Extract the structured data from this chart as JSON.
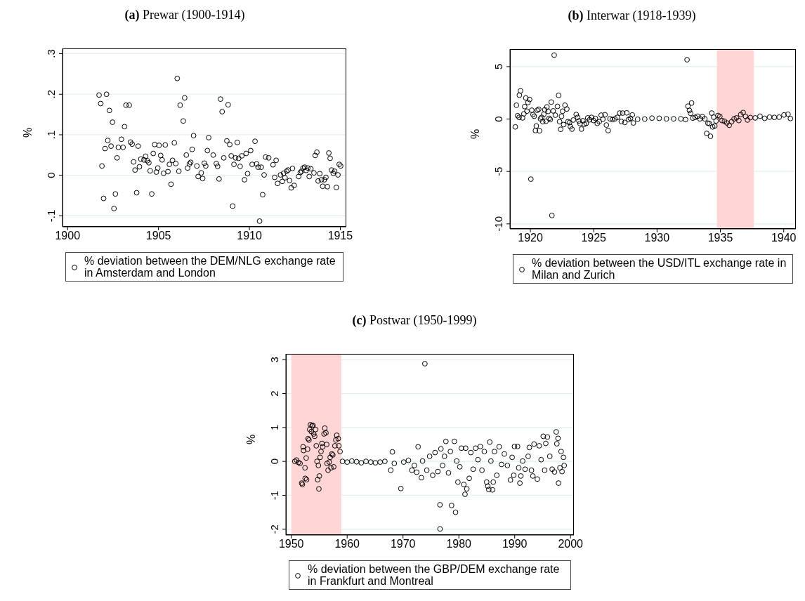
{
  "chart_data": [
    {
      "type": "scatter",
      "title": "(a) Prewar (1900-1914)",
      "ylabel": "%",
      "legend": "bottom",
      "marker": "circle",
      "grid": "y",
      "xlim": [
        1899.72,
        1915.33
      ],
      "ylim": [
        -0.127,
        0.313
      ],
      "xticks": [
        1900,
        1905,
        1910,
        1915
      ],
      "yticks": [
        {
          "value": -0.1,
          "label": "-.1"
        },
        0,
        {
          "value": 0.1,
          "label": ".1"
        },
        {
          "value": 0.2,
          "label": ".2"
        },
        {
          "value": 0.3,
          "label": ".3"
        }
      ],
      "x": [
        1901.73,
        1901.82,
        1901.89,
        1901.98,
        1902.06,
        1902.14,
        1902.21,
        1902.3,
        1902.39,
        1902.47,
        1902.55,
        1902.63,
        1902.72,
        1902.79,
        1902.96,
        1903.05,
        1903.13,
        1903.21,
        1903.39,
        1903.46,
        1903.55,
        1903.63,
        1903.71,
        1903.8,
        1903.88,
        1903.95,
        1904.03,
        1904.2,
        1904.29,
        1904.38,
        1904.47,
        1904.54,
        1904.63,
        1904.71,
        1904.79,
        1904.88,
        1904.96,
        1905.03,
        1905.12,
        1905.2,
        1905.28,
        1905.37,
        1905.52,
        1905.6,
        1905.69,
        1905.77,
        1905.87,
        1905.95,
        1906.03,
        1906.12,
        1906.19,
        1906.36,
        1906.44,
        1906.53,
        1906.6,
        1906.7,
        1906.77,
        1906.85,
        1906.93,
        1907.11,
        1907.18,
        1907.35,
        1907.43,
        1907.52,
        1907.6,
        1907.69,
        1907.76,
        1908.01,
        1908.18,
        1908.25,
        1908.33,
        1908.41,
        1908.5,
        1908.59,
        1908.76,
        1908.83,
        1908.92,
        1909.0,
        1909.08,
        1909.15,
        1909.24,
        1909.33,
        1909.41,
        1909.49,
        1909.58,
        1909.73,
        1909.82,
        1909.9,
        1910.07,
        1910.15,
        1910.31,
        1910.4,
        1910.48,
        1910.56,
        1910.65,
        1910.73,
        1910.81,
        1910.89,
        1911.06,
        1911.3,
        1911.39,
        1911.47,
        1911.55,
        1911.71,
        1911.81,
        1911.88,
        1911.96,
        1912.05,
        1912.13,
        1912.21,
        1912.3,
        1912.37,
        1912.46,
        1912.71,
        1912.8,
        1912.87,
        1912.95,
        1913.04,
        1913.12,
        1913.21,
        1913.29,
        1913.38,
        1913.55,
        1913.62,
        1913.71,
        1913.78,
        1913.87,
        1913.96,
        1914.03,
        1914.12,
        1914.21,
        1914.29,
        1914.37,
        1914.44,
        1914.52,
        1914.61,
        1914.69,
        1914.78,
        1914.87,
        1914.94,
        1915.02
      ],
      "series": [
        {
          "name": "% deviation between the DEM/NLG exchange rate in Amsterdam and London",
          "color": "#000000",
          "values": [
            0.198,
            0.177,
            0.023,
            -0.057,
            0.066,
            0.2,
            0.086,
            0.16,
            0.072,
            0.131,
            -0.082,
            -0.046,
            0.043,
            0.069,
            0.089,
            0.069,
            0.12,
            0.173,
            0.173,
            0.082,
            0.077,
            0.033,
            0.013,
            -0.043,
            0.072,
            0.021,
            0.04,
            0.038,
            0.047,
            0.036,
            0.031,
            0.011,
            -0.046,
            0.054,
            0.076,
            0.008,
            0.018,
            0.074,
            0.049,
            0.038,
            0.005,
            0.075,
            0.009,
            0.027,
            -0.022,
            0.037,
            0.08,
            0.029,
            0.239,
            0.01,
            0.173,
            0.134,
            0.191,
            0.05,
            0.018,
            0.028,
            0.032,
            0.064,
            0.098,
            0.023,
            -0.003,
            0.006,
            -0.008,
            0.03,
            0.023,
            0.061,
            0.093,
            0.05,
            0.029,
            0.022,
            -0.009,
            0.188,
            0.157,
            0.043,
            0.085,
            0.174,
            0.076,
            0.048,
            -0.076,
            0.027,
            0.043,
            0.081,
            0.042,
            0.022,
            0.048,
            -0.011,
            0.054,
            0.004,
            0.061,
            0.027,
            0.084,
            0.028,
            0.02,
            -0.113,
            0.02,
            -0.048,
            0.001,
            0.045,
            0.043,
            0.026,
            -0.005,
            0.037,
            -0.02,
            0.001,
            -0.015,
            0.005,
            -0.006,
            0.01,
            0.013,
            -0.013,
            -0.031,
            0.017,
            -0.025,
            -0.003,
            0.007,
            0.01,
            0.018,
            0.02,
            0.012,
            0.018,
            -0.003,
            0.016,
            0.006,
            0.049,
            0.057,
            -0.014,
            0.004,
            -0.011,
            -0.027,
            -0.011,
            -0.005,
            -0.028,
            0.055,
            0.042,
            0.013,
            0.005,
            0.01,
            -0.03,
            0.001,
            0.027,
            0.023
          ]
        }
      ]
    },
    {
      "type": "scatter",
      "title": "(b) Interwar (1918-1939)",
      "ylabel": "%",
      "legend": "bottom",
      "marker": "circle",
      "grid": "y",
      "xlim": [
        1918.39,
        1940.96
      ],
      "ylim": [
        -10.48,
        6.67
      ],
      "xticks": [
        1920,
        1925,
        1930,
        1935,
        1940
      ],
      "yticks": [
        -10,
        -5,
        0,
        5
      ],
      "bands": [
        {
          "axis": "x",
          "from": 1934.72,
          "to": 1937.65,
          "color": "#ffd5d5"
        }
      ],
      "x": [
        1918.81,
        1918.9,
        1918.99,
        1919.11,
        1919.13,
        1919.22,
        1919.38,
        1919.49,
        1919.55,
        1919.64,
        1919.73,
        1919.81,
        1919.94,
        1920.04,
        1920.11,
        1920.21,
        1920.3,
        1920.4,
        1920.47,
        1920.55,
        1920.66,
        1920.72,
        1920.8,
        1920.89,
        1920.98,
        1921.06,
        1921.14,
        1921.23,
        1921.31,
        1921.4,
        1921.48,
        1921.57,
        1921.65,
        1921.7,
        1921.8,
        1921.88,
        1921.97,
        1922.14,
        1922.23,
        1922.31,
        1922.39,
        1922.46,
        1922.54,
        1922.63,
        1922.73,
        1922.88,
        1922.97,
        1923.09,
        1923.16,
        1923.28,
        1923.39,
        1923.62,
        1923.73,
        1923.83,
        1923.92,
        1924.03,
        1924.15,
        1924.26,
        1924.41,
        1924.53,
        1924.68,
        1924.83,
        1924.98,
        1925.13,
        1925.28,
        1925.44,
        1925.59,
        1925.72,
        1925.89,
        1926.0,
        1926.14,
        1926.29,
        1926.48,
        1926.67,
        1926.86,
        1927.05,
        1927.18,
        1927.29,
        1927.46,
        1927.61,
        1927.75,
        1927.9,
        1928.05,
        1928.13,
        1928.47,
        1929.03,
        1929.6,
        1930.17,
        1930.74,
        1931.31,
        1931.88,
        1932.25,
        1932.37,
        1932.44,
        1932.56,
        1932.65,
        1932.73,
        1932.82,
        1933.01,
        1933.2,
        1933.39,
        1933.58,
        1933.77,
        1933.92,
        1934.02,
        1934.13,
        1934.22,
        1934.32,
        1934.39,
        1934.47,
        1934.56,
        1934.66,
        1934.81,
        1934.96,
        1935.13,
        1935.32,
        1935.51,
        1935.7,
        1935.89,
        1936.08,
        1936.27,
        1936.46,
        1936.61,
        1936.8,
        1936.99,
        1937.14,
        1937.37,
        1937.75,
        1938.13,
        1938.5,
        1938.88,
        1939.26,
        1939.64,
        1940.02,
        1940.34,
        1940.53
      ],
      "series": [
        {
          "name": "% deviation between the USD/ITL exchange rate in Milan and Zurich",
          "color": "#000000",
          "values": [
            -0.75,
            1.32,
            0.32,
            0.16,
            2.28,
            2.69,
            0.11,
            0.5,
            1.19,
            2.01,
            0.75,
            1.58,
            1.87,
            -5.73,
            0.84,
            0.43,
            0.27,
            -1.1,
            -0.66,
            0.84,
            0.94,
            -1.12,
            0.02,
            0.16,
            -0.25,
            0.46,
            0.89,
            -0.21,
            1.16,
            0.73,
            0.07,
            -0.05,
            1.62,
            -9.2,
            0.78,
            6.1,
            0.37,
            1.21,
            2.26,
            -0.25,
            -0.98,
            0.27,
            0.75,
            -0.53,
            1.32,
            0.96,
            -0.25,
            -0.34,
            -0.73,
            -0.96,
            -0.09,
            0.43,
            0.16,
            -0.18,
            -0.43,
            -0.96,
            -0.16,
            -0.5,
            -0.41,
            0.11,
            -0.07,
            0.16,
            -0.14,
            0.05,
            -0.41,
            -0.25,
            0.37,
            -0.02,
            0.41,
            -0.57,
            -1.1,
            0.02,
            -0.05,
            0.02,
            0.16,
            0.57,
            -0.23,
            0.57,
            -0.32,
            0.59,
            -0.05,
            0.07,
            0.39,
            -0.37,
            -0.02,
            0.0,
            0.09,
            0.07,
            0.02,
            0.02,
            0.02,
            -0.05,
            5.66,
            1.23,
            0.82,
            0.55,
            1.53,
            0.09,
            0.16,
            0.27,
            0.02,
            0.23,
            0.02,
            -1.37,
            -0.39,
            -0.43,
            -1.64,
            0.57,
            -0.75,
            0.18,
            -0.66,
            -0.18,
            0.34,
            0.25,
            -0.14,
            -0.21,
            -0.37,
            -0.59,
            -0.25,
            0.02,
            0.11,
            -0.14,
            0.43,
            0.62,
            0.25,
            -0.09,
            0.14,
            0.11,
            0.27,
            0.07,
            0.18,
            0.16,
            0.18,
            0.39,
            0.46,
            0.05
          ]
        }
      ]
    },
    {
      "type": "scatter",
      "title": "(c) Postwar (1950-1999)",
      "ylabel": "%",
      "legend": "bottom",
      "marker": "circle",
      "grid": "y",
      "xlim": [
        1949.03,
        2000.6
      ],
      "ylim": [
        -2.17,
        3.17
      ],
      "xticks": [
        1950,
        1960,
        1970,
        1980,
        1990,
        2000
      ],
      "yticks": [
        -2,
        -1,
        0,
        1,
        2,
        3
      ],
      "bands": [
        {
          "axis": "x",
          "from": 1950,
          "to": 1958.95,
          "color": "#ffd5d5"
        }
      ],
      "x": [
        1950.63,
        1950.93,
        1951.27,
        1951.56,
        1951.86,
        1951.98,
        1952.11,
        1952.19,
        1952.45,
        1952.49,
        1952.66,
        1952.74,
        1952.91,
        1953.0,
        1953.16,
        1953.29,
        1953.42,
        1953.59,
        1953.71,
        1953.88,
        1954.01,
        1954.18,
        1954.35,
        1954.47,
        1954.6,
        1954.73,
        1954.85,
        1954.94,
        1955.02,
        1955.15,
        1955.32,
        1955.49,
        1955.61,
        1955.86,
        1955.99,
        1956.2,
        1956.33,
        1956.41,
        1956.58,
        1956.79,
        1956.96,
        1957.09,
        1957.26,
        1957.43,
        1957.59,
        1957.81,
        1957.97,
        1958.14,
        1958.4,
        1958.52,
        1958.73,
        1959.16,
        1960.0,
        1960.84,
        1961.69,
        1962.53,
        1963.38,
        1964.22,
        1965.06,
        1965.91,
        1966.75,
        1967.81,
        1968.1,
        1968.44,
        1969.62,
        1970.13,
        1970.97,
        1971.6,
        1972.03,
        1972.45,
        1972.7,
        1973.29,
        1973.5,
        1973.92,
        1974.26,
        1974.77,
        1975.32,
        1975.74,
        1976.24,
        1976.62,
        1976.63,
        1976.79,
        1977.09,
        1977.43,
        1977.68,
        1978.14,
        1978.48,
        1978.69,
        1979.2,
        1979.41,
        1979.62,
        1979.83,
        1980.17,
        1980.46,
        1980.89,
        1981.1,
        1981.22,
        1981.43,
        1981.86,
        1982.15,
        1982.57,
        1983.0,
        1983.42,
        1983.84,
        1984.14,
        1984.56,
        1984.98,
        1985.19,
        1985.36,
        1985.53,
        1985.74,
        1986.03,
        1986.16,
        1986.37,
        1986.79,
        1987.22,
        1987.64,
        1988.14,
        1988.69,
        1989.24,
        1989.54,
        1989.83,
        1989.96,
        1990.51,
        1990.72,
        1990.93,
        1991.1,
        1991.43,
        1991.86,
        1992.41,
        1992.62,
        1993.0,
        1993.25,
        1993.46,
        1994.05,
        1994.39,
        1994.73,
        1995.11,
        1995.36,
        1995.57,
        1995.86,
        1996.29,
        1996.71,
        1997.13,
        1997.43,
        1997.55,
        1997.76,
        1997.85,
        1998.1,
        1998.31,
        1998.48,
        1998.73,
        1998.86
      ],
      "series": [
        {
          "name": "% deviation between the GBP/DEM exchange rate in Frankfurt and Montreal",
          "color": "#000000",
          "values": [
            0.0,
            0.04,
            -0.03,
            -0.06,
            -0.64,
            -0.68,
            0.43,
            0.32,
            -0.19,
            -0.5,
            0.1,
            -0.54,
            0.36,
            0.67,
            0.63,
            0.94,
            1.08,
            0.88,
            1.05,
            1.06,
            0.81,
            0.74,
            0.94,
            0.46,
            0.0,
            -0.54,
            -0.12,
            -0.81,
            -0.43,
            0.12,
            0.29,
            0.53,
            0.43,
            0.81,
            0.98,
            0.84,
            0.5,
            -0.06,
            -0.26,
            -0.02,
            0.12,
            -0.19,
            0.22,
            0.19,
            -0.16,
            0.46,
            0.63,
            0.77,
            0.67,
            0.46,
            0.29,
            0.0,
            -0.02,
            0.01,
            -0.01,
            -0.04,
            0.0,
            -0.02,
            -0.04,
            -0.02,
            0.0,
            -0.26,
            0.28,
            -0.06,
            -0.8,
            -0.02,
            0.03,
            -0.26,
            -0.12,
            -0.32,
            0.43,
            -0.48,
            0.01,
            2.88,
            -0.26,
            0.15,
            -0.41,
            0.26,
            -0.3,
            -1.28,
            -1.99,
            0.37,
            -0.12,
            0.15,
            0.59,
            -0.34,
            0.29,
            -1.3,
            0.59,
            -1.5,
            0.01,
            -0.61,
            -0.16,
            0.39,
            -0.68,
            -0.97,
            0.39,
            -0.81,
            -0.5,
            0.26,
            -0.23,
            0.39,
            0.05,
            0.44,
            -0.26,
            0.29,
            -0.61,
            -0.73,
            -0.83,
            0.57,
            0.01,
            -0.84,
            -0.61,
            0.29,
            -0.41,
            0.43,
            -0.09,
            0.22,
            -0.12,
            -0.55,
            0.12,
            -0.41,
            0.44,
            0.44,
            -0.19,
            -0.64,
            -0.43,
            0.01,
            -0.23,
            0.15,
            0.41,
            -0.26,
            -0.43,
            0.51,
            -0.52,
            0.46,
            0.05,
            0.74,
            -0.26,
            0.53,
            0.72,
            0.15,
            -0.23,
            -0.31,
            0.87,
            0.52,
            0.68,
            -0.64,
            -0.19,
            0.29,
            -0.3,
            0.12,
            -0.12
          ]
        }
      ]
    }
  ]
}
